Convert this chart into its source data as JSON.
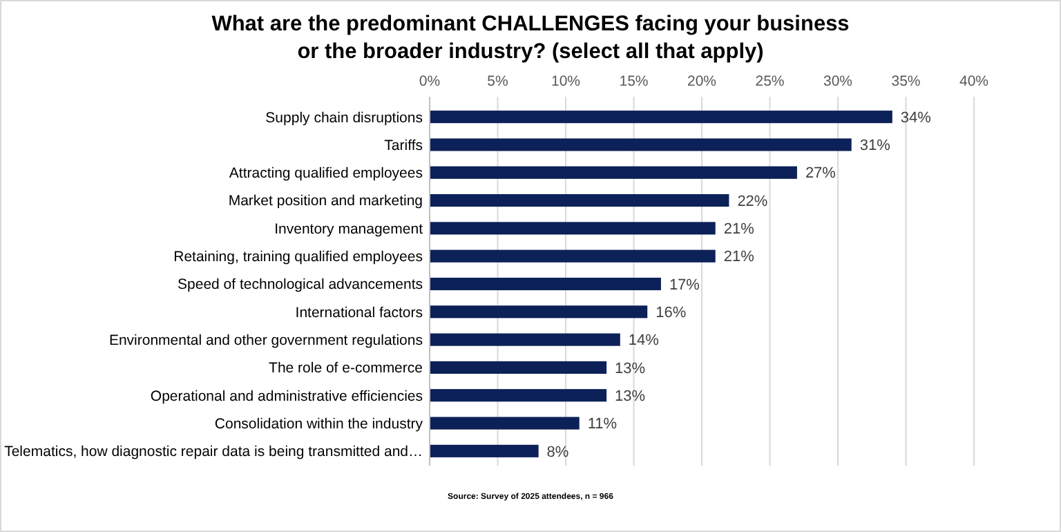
{
  "chart_data": {
    "type": "bar",
    "orientation": "horizontal",
    "title": "What are the predominant CHALLENGES facing your business\nor the broader industry? (select all that apply)",
    "categories": [
      "Supply chain disruptions",
      "Tariffs",
      "Attracting qualified employees",
      "Market position and marketing",
      "Inventory management",
      "Retaining, training qualified employees",
      "Speed of technological advancements",
      "International factors",
      "Environmental and other government regulations",
      "The role of e-commerce",
      "Operational and administrative efficiencies",
      "Consolidation within the industry",
      "Telematics, how diagnostic repair data is being transmitted and…"
    ],
    "values": [
      34,
      31,
      27,
      22,
      21,
      21,
      17,
      16,
      14,
      13,
      13,
      11,
      8
    ],
    "value_labels": [
      "34%",
      "31%",
      "27%",
      "22%",
      "21%",
      "21%",
      "17%",
      "16%",
      "14%",
      "13%",
      "13%",
      "11%",
      "8%"
    ],
    "color": "#0c2158",
    "xlim": [
      0,
      40
    ],
    "xticks": [
      {
        "value": 0,
        "label": "0%"
      },
      {
        "value": 5,
        "label": "5%"
      },
      {
        "value": 10,
        "label": "10%"
      },
      {
        "value": 15,
        "label": "15%"
      },
      {
        "value": 20,
        "label": "20%"
      },
      {
        "value": 25,
        "label": "25%"
      },
      {
        "value": 30,
        "label": "30%"
      },
      {
        "value": 35,
        "label": "35%"
      },
      {
        "value": 40,
        "label": "40%"
      }
    ],
    "grid": "x",
    "annotations": [
      "Source: Survey of 2025 attendees, n = 966"
    ]
  }
}
